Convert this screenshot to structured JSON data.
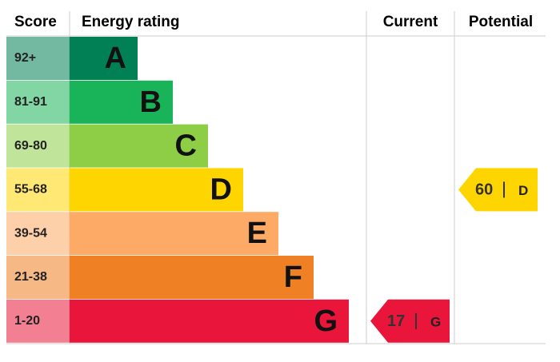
{
  "header": {
    "score": "Score",
    "rating": "Energy rating",
    "current": "Current",
    "potential": "Potential"
  },
  "bands": [
    {
      "score": "92+",
      "letter": "A",
      "color": "#008054"
    },
    {
      "score": "81-91",
      "letter": "B",
      "color": "#19b459"
    },
    {
      "score": "69-80",
      "letter": "C",
      "color": "#8dce46"
    },
    {
      "score": "55-68",
      "letter": "D",
      "color": "#ffd500"
    },
    {
      "score": "39-54",
      "letter": "E",
      "color": "#fcaa65"
    },
    {
      "score": "21-38",
      "letter": "F",
      "color": "#ef8023"
    },
    {
      "score": "1-20",
      "letter": "G",
      "color": "#e9153b"
    }
  ],
  "current": {
    "value": 17,
    "letter": "G"
  },
  "potential": {
    "value": 60,
    "letter": "D"
  }
}
